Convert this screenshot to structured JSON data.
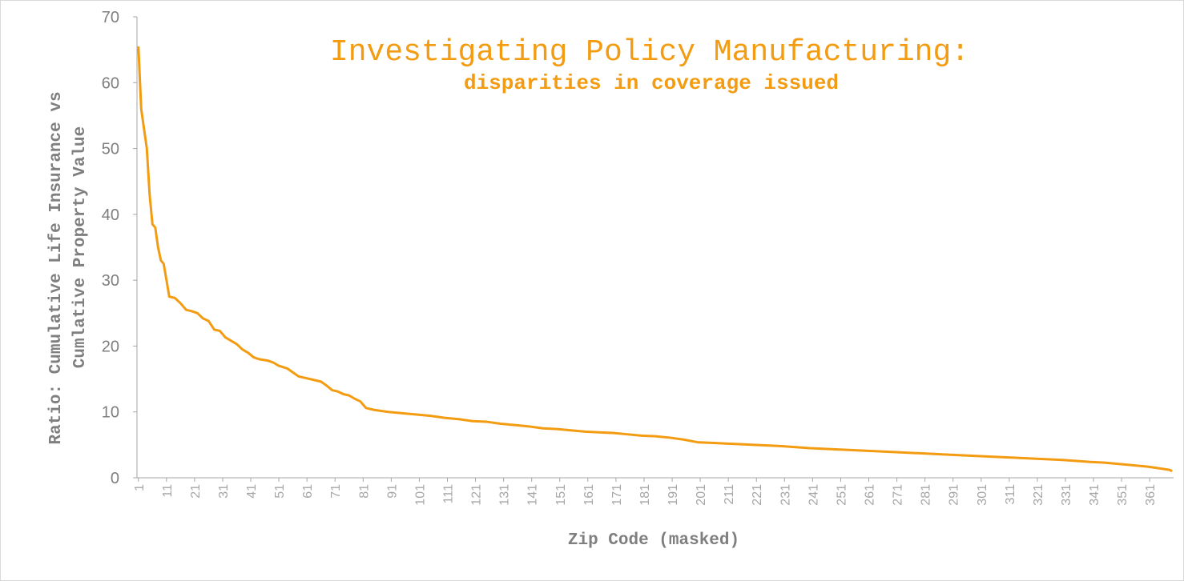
{
  "chart_data": {
    "type": "line",
    "title": "Investigating Policy Manufacturing:",
    "subtitle": "disparities in coverage issued",
    "xlabel": "Zip Code (masked)",
    "ylabel_line1": "Ratio: Cumulative Life Insurance vs",
    "ylabel_line2": "Cumlative Property Value",
    "ylim": [
      0,
      70
    ],
    "y_ticks": [
      "0",
      "10",
      "20",
      "30",
      "40",
      "50",
      "60",
      "70"
    ],
    "x_ticks": [
      "1",
      "11",
      "21",
      "31",
      "41",
      "51",
      "61",
      "71",
      "81",
      "91",
      "101",
      "111",
      "121",
      "131",
      "141",
      "151",
      "161",
      "171",
      "181",
      "191",
      "201",
      "211",
      "221",
      "231",
      "241",
      "251",
      "261",
      "271",
      "281",
      "291",
      "301",
      "311",
      "321",
      "331",
      "341",
      "351",
      "361"
    ],
    "x_range": [
      1,
      369
    ],
    "grid": false,
    "legend": "none",
    "line_color": "#F39C12",
    "points": [
      [
        1,
        65.5
      ],
      [
        2,
        56
      ],
      [
        3,
        53
      ],
      [
        4,
        50
      ],
      [
        5,
        43
      ],
      [
        6,
        38.5
      ],
      [
        7,
        38
      ],
      [
        8,
        35
      ],
      [
        9,
        33
      ],
      [
        10,
        32.5
      ],
      [
        11,
        30
      ],
      [
        12,
        27.5
      ],
      [
        14,
        27.3
      ],
      [
        16,
        26.5
      ],
      [
        18,
        25.5
      ],
      [
        20,
        25.3
      ],
      [
        22,
        25
      ],
      [
        24,
        24.2
      ],
      [
        26,
        23.8
      ],
      [
        28,
        22.5
      ],
      [
        30,
        22.3
      ],
      [
        32,
        21.3
      ],
      [
        34,
        20.8
      ],
      [
        36,
        20.3
      ],
      [
        38,
        19.5
      ],
      [
        40,
        19
      ],
      [
        42,
        18.3
      ],
      [
        44,
        18
      ],
      [
        47,
        17.8
      ],
      [
        49,
        17.5
      ],
      [
        51,
        17
      ],
      [
        54,
        16.6
      ],
      [
        56,
        16
      ],
      [
        58,
        15.4
      ],
      [
        60,
        15.2
      ],
      [
        63,
        14.9
      ],
      [
        66,
        14.6
      ],
      [
        68,
        14
      ],
      [
        70,
        13.3
      ],
      [
        72,
        13.1
      ],
      [
        74,
        12.7
      ],
      [
        76,
        12.5
      ],
      [
        78,
        12
      ],
      [
        80,
        11.6
      ],
      [
        82,
        10.6
      ],
      [
        85,
        10.3
      ],
      [
        90,
        10
      ],
      [
        95,
        9.8
      ],
      [
        100,
        9.6
      ],
      [
        105,
        9.4
      ],
      [
        110,
        9.1
      ],
      [
        115,
        8.9
      ],
      [
        120,
        8.6
      ],
      [
        125,
        8.5
      ],
      [
        130,
        8.2
      ],
      [
        135,
        8
      ],
      [
        140,
        7.8
      ],
      [
        145,
        7.5
      ],
      [
        150,
        7.4
      ],
      [
        155,
        7.2
      ],
      [
        160,
        7
      ],
      [
        165,
        6.9
      ],
      [
        170,
        6.8
      ],
      [
        175,
        6.6
      ],
      [
        180,
        6.4
      ],
      [
        185,
        6.3
      ],
      [
        190,
        6.1
      ],
      [
        195,
        5.8
      ],
      [
        200,
        5.4
      ],
      [
        205,
        5.3
      ],
      [
        210,
        5.2
      ],
      [
        215,
        5.1
      ],
      [
        220,
        5
      ],
      [
        225,
        4.9
      ],
      [
        230,
        4.8
      ],
      [
        240,
        4.5
      ],
      [
        250,
        4.3
      ],
      [
        260,
        4.1
      ],
      [
        270,
        3.9
      ],
      [
        280,
        3.7
      ],
      [
        290,
        3.5
      ],
      [
        300,
        3.3
      ],
      [
        310,
        3.1
      ],
      [
        320,
        2.9
      ],
      [
        330,
        2.7
      ],
      [
        340,
        2.4
      ],
      [
        345,
        2.3
      ],
      [
        350,
        2.1
      ],
      [
        355,
        1.9
      ],
      [
        360,
        1.7
      ],
      [
        365,
        1.4
      ],
      [
        368,
        1.2
      ],
      [
        369,
        1.0
      ]
    ]
  }
}
